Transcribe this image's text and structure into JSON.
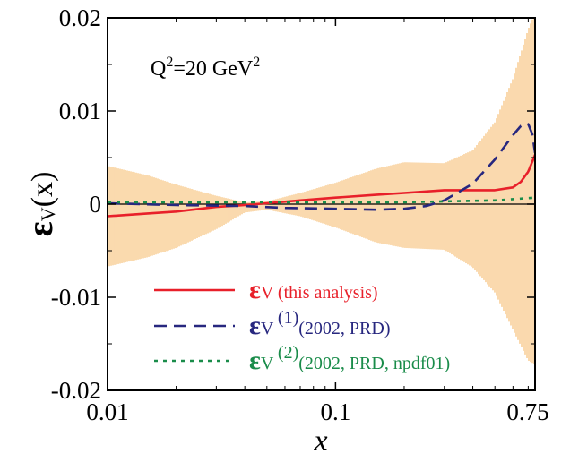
{
  "chart_data": {
    "type": "line",
    "xscale": "log",
    "xlim": [
      0.01,
      0.75
    ],
    "ylim": [
      -0.02,
      0.02
    ],
    "xlabel": "x",
    "ylabel_symbol": "ε",
    "ylabel_sub": "V",
    "ylabel_arg": "(x)",
    "annotation": {
      "text_main": "Q",
      "sup1": "2",
      "text_mid": "=20 GeV",
      "sup2": "2"
    },
    "x_ticks": [
      {
        "value": 0.01,
        "label": "0.01"
      },
      {
        "value": 0.1,
        "label": "0.1"
      },
      {
        "value": 0.75,
        "label": "0.75"
      }
    ],
    "y_ticks": [
      {
        "value": 0.02,
        "label": "0.02"
      },
      {
        "value": 0.01,
        "label": "0.01"
      },
      {
        "value": 0,
        "label": "0"
      },
      {
        "value": -0.01,
        "label": "-0.01"
      },
      {
        "value": -0.02,
        "label": "-0.02"
      }
    ],
    "uncertainty_band": {
      "color": "#f7c98c",
      "x": [
        0.01,
        0.015,
        0.02,
        0.03,
        0.04,
        0.05,
        0.07,
        0.1,
        0.15,
        0.2,
        0.3,
        0.4,
        0.5,
        0.6,
        0.7,
        0.75
      ],
      "upper": [
        0.0041,
        0.0031,
        0.0021,
        0.0009,
        0.0002,
        0.0003,
        0.0012,
        0.0023,
        0.0038,
        0.0045,
        0.0044,
        0.0058,
        0.0088,
        0.0135,
        0.0188,
        0.0205
      ],
      "lower": [
        -0.0067,
        -0.0057,
        -0.0047,
        -0.0027,
        -0.0009,
        -0.0006,
        -0.0013,
        -0.0025,
        -0.0041,
        -0.0047,
        -0.0049,
        -0.0068,
        -0.0095,
        -0.0135,
        -0.0168,
        -0.0172
      ]
    },
    "series": [
      {
        "name": "(this analysis)",
        "sup": "",
        "color": "#e8202a",
        "dash": "",
        "x": [
          0.01,
          0.015,
          0.02,
          0.03,
          0.04,
          0.05,
          0.07,
          0.1,
          0.15,
          0.2,
          0.3,
          0.4,
          0.5,
          0.6,
          0.65,
          0.7,
          0.75
        ],
        "y": [
          -0.0013,
          -0.001,
          -0.0008,
          -0.0003,
          -0.0001,
          0.0001,
          0.0004,
          0.0007,
          0.001,
          0.0012,
          0.0015,
          0.0015,
          0.0015,
          0.0018,
          0.0024,
          0.0035,
          0.0053
        ]
      },
      {
        "name": "(2002, PRD)",
        "sup": "(1)",
        "color": "#27277f",
        "dash": "14,8",
        "x": [
          0.01,
          0.02,
          0.04,
          0.06,
          0.1,
          0.15,
          0.2,
          0.25,
          0.3,
          0.4,
          0.5,
          0.6,
          0.65,
          0.7,
          0.73,
          0.75
        ],
        "y": [
          0.0001,
          -0.0001,
          -0.0002,
          -0.0004,
          -0.0005,
          -0.0006,
          -0.0005,
          -0.0002,
          0.0004,
          0.0022,
          0.0048,
          0.0074,
          0.0084,
          0.0086,
          0.0075,
          0.0055
        ]
      },
      {
        "name": "(2002, PRD, npdf01)",
        "sup": "(2)",
        "color": "#1a8c4a",
        "dash": "4,6",
        "x": [
          0.01,
          0.05,
          0.1,
          0.2,
          0.3,
          0.5,
          0.75
        ],
        "y": [
          0.0002,
          0.0002,
          0.0002,
          0.0002,
          0.0003,
          0.0004,
          0.0007
        ]
      }
    ],
    "legend": {
      "position": "bottom-right",
      "symbol": "ε",
      "sub": "V"
    }
  }
}
